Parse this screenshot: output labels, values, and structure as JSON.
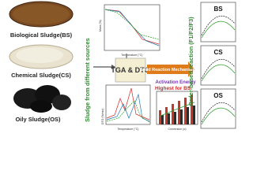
{
  "left": {
    "samples": [
      {
        "label": "Biological Sludge(BS)"
      },
      {
        "label": "Chemical Sludge(CS)"
      },
      {
        "label": "Oily Sludge(OS)"
      }
    ],
    "side_label": "Sludge from different sources"
  },
  "center": {
    "box": "TGA & DTG",
    "arrow_label": "Solid Reaction Mechanism",
    "tga_plot": {
      "xlabel": "Temperature (°C)",
      "ylabel": "Mass (%)"
    },
    "dtg_plot": {
      "xlabel": "Temperature (°C)",
      "ylabel": "DTG (%/min)"
    },
    "energy_plot": {
      "title": "Activation Energy",
      "note": "Highest for BS",
      "xlabel": "Conversion (α)"
    }
  },
  "right": {
    "side_label": "Order-based reaction (F1/F2/F3)",
    "panels": [
      "BS",
      "CS",
      "OS"
    ]
  }
}
